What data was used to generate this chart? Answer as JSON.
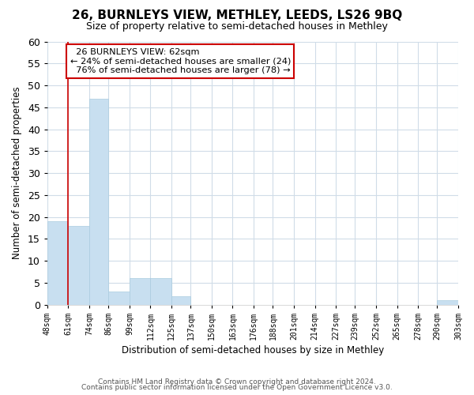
{
  "title": "26, BURNLEYS VIEW, METHLEY, LEEDS, LS26 9BQ",
  "subtitle": "Size of property relative to semi-detached houses in Methley",
  "xlabel": "Distribution of semi-detached houses by size in Methley",
  "ylabel": "Number of semi-detached properties",
  "bin_edges": [
    48,
    61,
    74,
    86,
    99,
    112,
    125,
    137,
    150,
    163,
    176,
    188,
    201,
    214,
    227,
    239,
    252,
    265,
    278,
    290,
    303
  ],
  "bin_labels": [
    "48sqm",
    "61sqm",
    "74sqm",
    "86sqm",
    "99sqm",
    "112sqm",
    "125sqm",
    "137sqm",
    "150sqm",
    "163sqm",
    "176sqm",
    "188sqm",
    "201sqm",
    "214sqm",
    "227sqm",
    "239sqm",
    "252sqm",
    "265sqm",
    "278sqm",
    "290sqm",
    "303sqm"
  ],
  "counts": [
    19,
    18,
    47,
    3,
    6,
    6,
    2,
    0,
    0,
    0,
    0,
    0,
    0,
    0,
    0,
    0,
    0,
    0,
    0,
    1
  ],
  "bar_color": "#c8dff0",
  "bar_edge_color": "#aacce0",
  "property_line_x": 61,
  "property_label": "26 BURNLEYS VIEW: 62sqm",
  "pct_smaller": 24,
  "count_smaller": 24,
  "pct_larger": 76,
  "count_larger": 78,
  "annotation_box_color": "#ffffff",
  "annotation_box_edge_color": "#cc0000",
  "property_line_color": "#cc0000",
  "ylim": [
    0,
    60
  ],
  "yticks": [
    0,
    5,
    10,
    15,
    20,
    25,
    30,
    35,
    40,
    45,
    50,
    55,
    60
  ],
  "footer_line1": "Contains HM Land Registry data © Crown copyright and database right 2024.",
  "footer_line2": "Contains public sector information licensed under the Open Government Licence v3.0.",
  "background_color": "#ffffff",
  "plot_background_color": "#ffffff",
  "grid_color": "#d0dce8"
}
